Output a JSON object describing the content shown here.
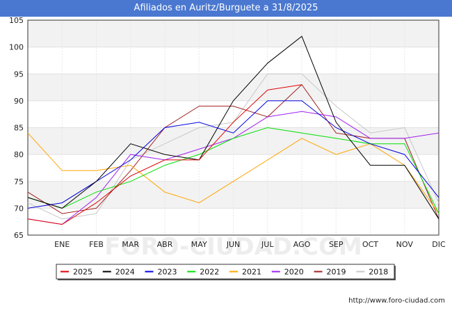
{
  "title": "Afiliados en Auritz/Burguete a 31/8/2025",
  "footer_url": "http://www.foro-ciudad.com",
  "watermark": "FORO-CIUDAD.COM",
  "chart_data": {
    "type": "line",
    "categories": [
      "",
      "ENE",
      "FEB",
      "MAR",
      "ABR",
      "MAY",
      "JUN",
      "JUL",
      "AGO",
      "SEP",
      "OCT",
      "NOV",
      "DIC"
    ],
    "ylim": [
      65,
      105
    ],
    "yticks": [
      65,
      70,
      75,
      80,
      85,
      90,
      95,
      100,
      105
    ],
    "grid": true,
    "legend_position": "bottom",
    "series": [
      {
        "name": "2018",
        "color": "#c8c8c8",
        "values": [
          71,
          68,
          69,
          79,
          82,
          85,
          86,
          95,
          95,
          89,
          84,
          85,
          71
        ]
      },
      {
        "name": "2019",
        "color": "#a02020",
        "values": [
          73,
          69,
          70,
          77,
          85,
          89,
          89,
          87,
          93,
          84,
          83,
          83,
          68
        ]
      },
      {
        "name": "2020",
        "color": "#a020f0",
        "values": [
          68,
          67,
          72,
          80,
          79,
          81,
          83,
          87,
          88,
          87,
          83,
          83,
          84
        ]
      },
      {
        "name": "2021",
        "color": "#ffa500",
        "values": [
          84,
          77,
          77,
          78,
          73,
          71,
          75,
          79,
          83,
          80,
          82,
          78,
          69
        ]
      },
      {
        "name": "2022",
        "color": "#00e000",
        "values": [
          72,
          70,
          73,
          75,
          78,
          80,
          83,
          85,
          84,
          83,
          82,
          82,
          69
        ]
      },
      {
        "name": "2023",
        "color": "#0000e0",
        "values": [
          70,
          71,
          75,
          79,
          85,
          86,
          84,
          90,
          90,
          85,
          82,
          80,
          72
        ]
      },
      {
        "name": "2024",
        "color": "#000000",
        "values": [
          72,
          70,
          75,
          82,
          80,
          79,
          90,
          97,
          102,
          86,
          78,
          78,
          68
        ]
      },
      {
        "name": "2025",
        "color": "#e00000",
        "values": [
          68,
          67,
          71,
          76,
          79,
          79,
          86,
          92,
          93,
          null,
          null,
          null,
          null
        ]
      }
    ],
    "legend_order": [
      "2025",
      "2024",
      "2023",
      "2022",
      "2021",
      "2020",
      "2019",
      "2018"
    ]
  }
}
